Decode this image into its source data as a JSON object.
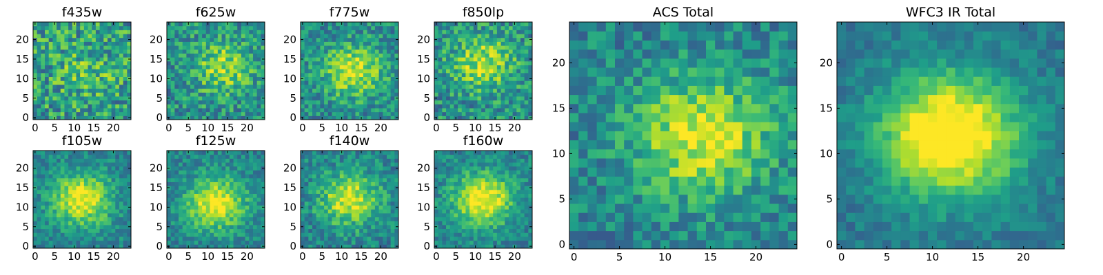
{
  "colormap": {
    "name": "viridis",
    "stops": [
      "#440154",
      "#482878",
      "#3e4989",
      "#31688e",
      "#26828e",
      "#1f9e89",
      "#35b779",
      "#6ece58",
      "#b5de2b",
      "#fde725"
    ]
  },
  "chart_data": [
    {
      "type": "heatmap",
      "title": "f435w",
      "grid_size": 25,
      "xlim": [
        0,
        24
      ],
      "ylim": [
        0,
        24
      ],
      "xticks": [
        0,
        5,
        10,
        15,
        20
      ],
      "yticks": [
        0,
        5,
        10,
        15,
        20
      ],
      "peak": [
        13,
        12
      ],
      "peak_strength": 0.15,
      "noise": 0.55,
      "seed": 11,
      "level": 0.55
    },
    {
      "type": "heatmap",
      "title": "f625w",
      "grid_size": 25,
      "xlim": [
        0,
        24
      ],
      "ylim": [
        0,
        24
      ],
      "xticks": [
        0,
        5,
        10,
        15,
        20
      ],
      "yticks": [
        0,
        5,
        10,
        15,
        20
      ],
      "peak": [
        14,
        13
      ],
      "peak_strength": 0.35,
      "noise": 0.45,
      "seed": 23,
      "level": 0.5
    },
    {
      "type": "heatmap",
      "title": "f775w",
      "grid_size": 25,
      "xlim": [
        0,
        24
      ],
      "ylim": [
        0,
        24
      ],
      "xticks": [
        0,
        5,
        10,
        15,
        20
      ],
      "yticks": [
        0,
        5,
        10,
        15,
        20
      ],
      "peak": [
        13,
        12
      ],
      "peak_strength": 0.45,
      "noise": 0.4,
      "seed": 37,
      "level": 0.48
    },
    {
      "type": "heatmap",
      "title": "f850lp",
      "grid_size": 25,
      "xlim": [
        0,
        24
      ],
      "ylim": [
        0,
        24
      ],
      "xticks": [
        0,
        5,
        10,
        15,
        20
      ],
      "yticks": [
        0,
        5,
        10,
        15,
        20
      ],
      "peak": [
        12,
        14
      ],
      "peak_strength": 0.4,
      "noise": 0.45,
      "seed": 41,
      "level": 0.5
    },
    {
      "type": "heatmap",
      "title": "f105w",
      "grid_size": 25,
      "xlim": [
        0,
        24
      ],
      "ylim": [
        0,
        24
      ],
      "xticks": [
        0,
        5,
        10,
        15,
        20
      ],
      "yticks": [
        0,
        5,
        10,
        15,
        20
      ],
      "peak": [
        12,
        12
      ],
      "peak_strength": 0.55,
      "noise": 0.3,
      "seed": 53,
      "level": 0.45
    },
    {
      "type": "heatmap",
      "title": "f125w",
      "grid_size": 25,
      "xlim": [
        0,
        24
      ],
      "ylim": [
        0,
        24
      ],
      "xticks": [
        0,
        5,
        10,
        15,
        20
      ],
      "yticks": [
        0,
        5,
        10,
        15,
        20
      ],
      "peak": [
        12,
        11
      ],
      "peak_strength": 0.55,
      "noise": 0.3,
      "seed": 67,
      "level": 0.45
    },
    {
      "type": "heatmap",
      "title": "f140w",
      "grid_size": 25,
      "xlim": [
        0,
        24
      ],
      "ylim": [
        0,
        24
      ],
      "xticks": [
        0,
        5,
        10,
        15,
        20
      ],
      "yticks": [
        0,
        5,
        10,
        15,
        20
      ],
      "peak": [
        12,
        12
      ],
      "peak_strength": 0.5,
      "noise": 0.35,
      "seed": 79,
      "level": 0.45
    },
    {
      "type": "heatmap",
      "title": "f160w",
      "grid_size": 25,
      "xlim": [
        0,
        24
      ],
      "ylim": [
        0,
        24
      ],
      "xticks": [
        0,
        5,
        10,
        15,
        20
      ],
      "yticks": [
        0,
        5,
        10,
        15,
        20
      ],
      "peak": [
        12,
        12
      ],
      "peak_strength": 0.6,
      "noise": 0.3,
      "seed": 83,
      "level": 0.45
    },
    {
      "type": "heatmap",
      "title": "ACS Total",
      "grid_size": 25,
      "xlim": [
        0,
        24
      ],
      "ylim": [
        0,
        24
      ],
      "xticks": [
        0,
        5,
        10,
        15,
        20
      ],
      "yticks": [
        0,
        5,
        10,
        15,
        20
      ],
      "peak": [
        14,
        12
      ],
      "peak_strength": 0.5,
      "noise": 0.35,
      "seed": 97,
      "level": 0.45
    },
    {
      "type": "heatmap",
      "title": "WFC3 IR Total",
      "grid_size": 25,
      "xlim": [
        0,
        24
      ],
      "ylim": [
        0,
        24
      ],
      "xticks": [
        0,
        5,
        10,
        15,
        20
      ],
      "yticks": [
        0,
        5,
        10,
        15,
        20
      ],
      "peak": [
        12,
        12
      ],
      "peak_strength": 0.75,
      "noise": 0.2,
      "seed": 101,
      "level": 0.4
    }
  ]
}
